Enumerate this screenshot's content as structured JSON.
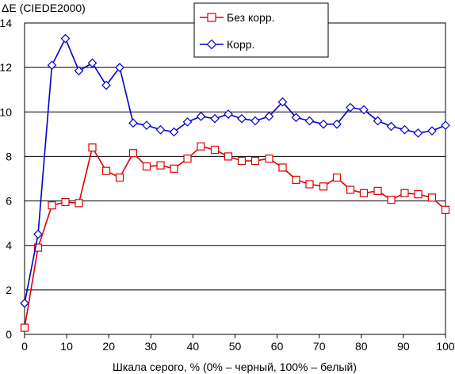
{
  "chart_data": {
    "type": "line",
    "title": "",
    "ylabel": "ΔE (CIEDE2000)",
    "xlabel": "Шкала серого, % (0% – черный, 100% – белый)",
    "xlim": [
      0,
      100
    ],
    "ylim": [
      0,
      14
    ],
    "xticks": [
      0,
      10,
      20,
      30,
      40,
      50,
      60,
      70,
      80,
      90,
      100
    ],
    "yticks": [
      0,
      2,
      4,
      6,
      8,
      10,
      12,
      14
    ],
    "grid": "horizontal",
    "legend_position": "top-center",
    "series": [
      {
        "name": "Без корр.",
        "color": "#dd0000",
        "marker": "square",
        "x": [
          0,
          3.2,
          6.5,
          9.7,
          12.9,
          16.1,
          19.4,
          22.6,
          25.8,
          29.0,
          32.3,
          35.5,
          38.7,
          41.9,
          45.2,
          48.4,
          51.6,
          54.8,
          58.1,
          61.3,
          64.5,
          67.7,
          71.0,
          74.2,
          77.4,
          80.6,
          83.9,
          87.1,
          90.3,
          93.5,
          96.8,
          100
        ],
        "y": [
          0.3,
          3.9,
          5.8,
          5.95,
          5.9,
          8.4,
          7.35,
          7.05,
          8.15,
          7.55,
          7.6,
          7.45,
          7.9,
          8.45,
          8.3,
          8.0,
          7.8,
          7.8,
          7.9,
          7.5,
          6.95,
          6.75,
          6.65,
          7.05,
          6.5,
          6.35,
          6.45,
          6.05,
          6.35,
          6.3,
          6.15,
          5.6
        ]
      },
      {
        "name": "Корр.",
        "color": "#0000cc",
        "marker": "diamond",
        "x": [
          0,
          3.2,
          6.5,
          9.7,
          12.9,
          16.1,
          19.4,
          22.6,
          25.8,
          29.0,
          32.3,
          35.5,
          38.7,
          41.9,
          45.2,
          48.4,
          51.6,
          54.8,
          58.1,
          61.3,
          64.5,
          67.7,
          71.0,
          74.2,
          77.4,
          80.6,
          83.9,
          87.1,
          90.3,
          93.5,
          96.8,
          100
        ],
        "y": [
          1.4,
          4.5,
          12.1,
          13.3,
          11.85,
          12.2,
          11.2,
          12.0,
          9.5,
          9.4,
          9.2,
          9.1,
          9.55,
          9.8,
          9.7,
          9.9,
          9.7,
          9.6,
          9.8,
          10.45,
          9.75,
          9.6,
          9.45,
          9.45,
          10.2,
          10.1,
          9.6,
          9.35,
          9.2,
          9.05,
          9.15,
          9.4
        ]
      }
    ]
  }
}
